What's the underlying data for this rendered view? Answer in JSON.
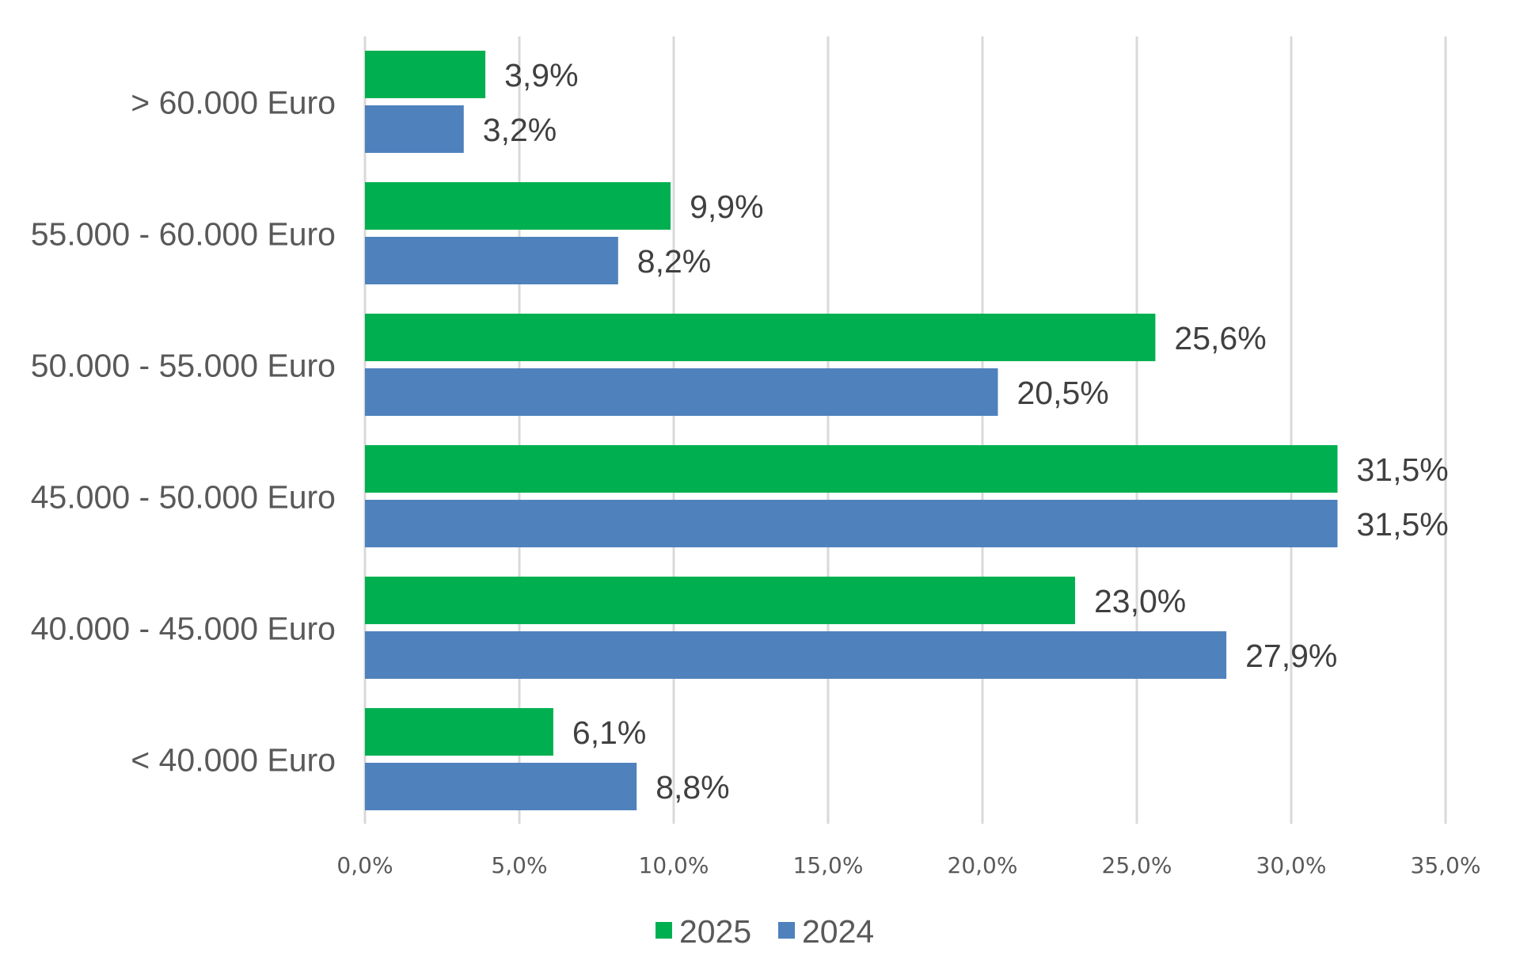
{
  "chart_data": {
    "type": "bar",
    "orientation": "horizontal",
    "title": "",
    "xlabel": "",
    "ylabel": "",
    "categories": [
      "> 60.000 Euro",
      "55.000 - 60.000 Euro",
      "50.000 - 55.000 Euro",
      "45.000 - 50.000 Euro",
      "40.000 - 45.000 Euro",
      "< 40.000 Euro"
    ],
    "series": [
      {
        "name": "2025",
        "color": "#00B050",
        "values": [
          3.9,
          9.9,
          25.6,
          31.5,
          23.0,
          6.1
        ],
        "labels": [
          "3,9%",
          "9,9%",
          "25,6%",
          "31,5%",
          "23,0%",
          "6,1%"
        ]
      },
      {
        "name": "2024",
        "color": "#4F81BD",
        "values": [
          3.2,
          8.2,
          20.5,
          31.5,
          27.9,
          8.8
        ],
        "labels": [
          "3,2%",
          "8,2%",
          "20,5%",
          "31,5%",
          "27,9%",
          "8,8%"
        ]
      }
    ],
    "xlim": [
      0,
      35
    ],
    "x_ticks": [
      0,
      5,
      10,
      15,
      20,
      25,
      30,
      35
    ],
    "x_tick_labels": [
      "0,0%",
      "5,0%",
      "10,0%",
      "15,0%",
      "20,0%",
      "25,0%",
      "30,0%",
      "35,0%"
    ],
    "grid": "vertical",
    "legend": {
      "placement": "bottom-center",
      "entries": [
        "2025",
        "2024"
      ]
    }
  }
}
